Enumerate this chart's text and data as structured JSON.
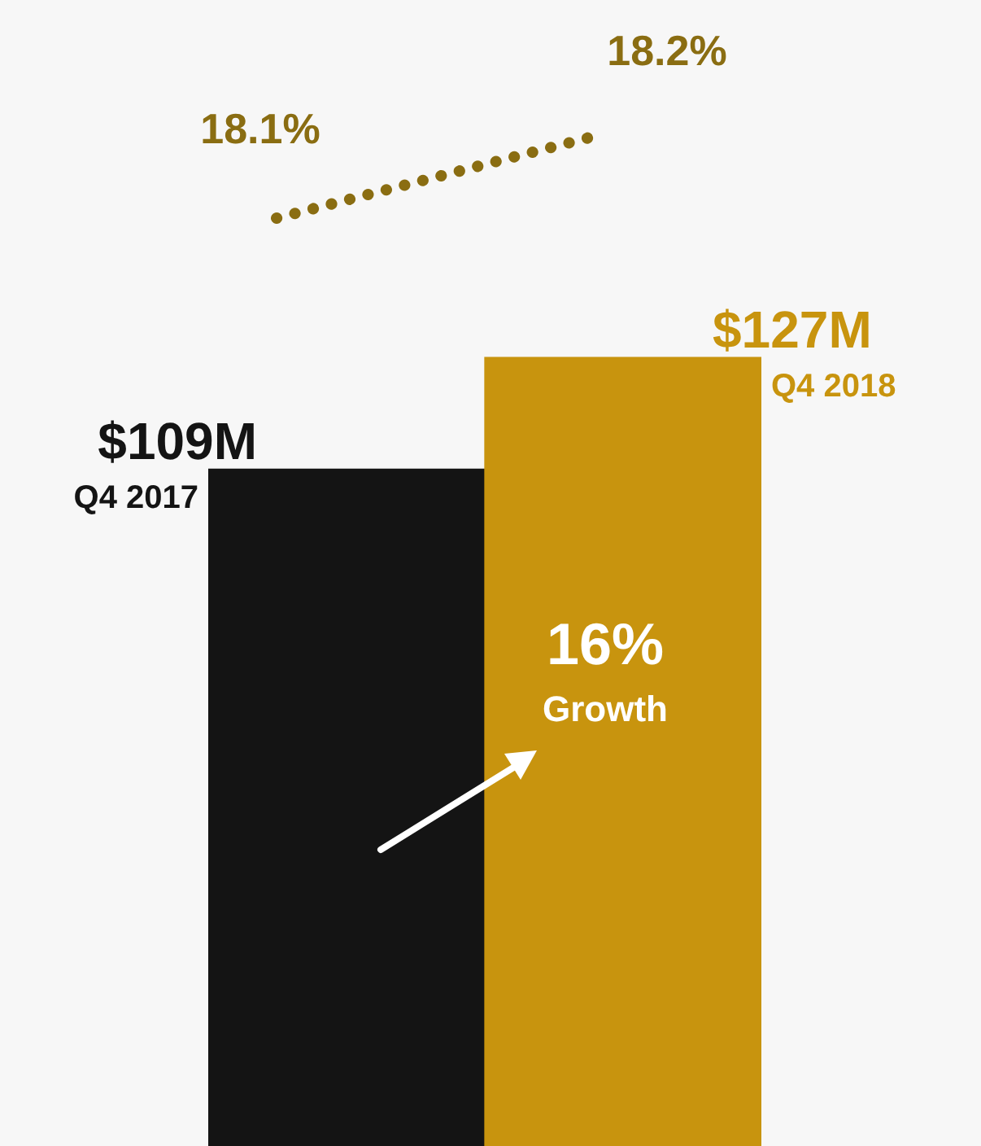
{
  "chart_data": {
    "type": "bar",
    "categories": [
      null,
      null
    ],
    "tick_labels": false,
    "series": [
      {
        "colors": [
          "#141414",
          "#c8940e"
        ],
        "values": [
          109,
          127
        ],
        "value_labels": [
          "$109M",
          "$127M"
        ]
      }
    ],
    "annotations": [
      "Q4 2017",
      "Q4 2018",
      "18.1%",
      "18.2%",
      "16% Growth"
    ]
  }
}
